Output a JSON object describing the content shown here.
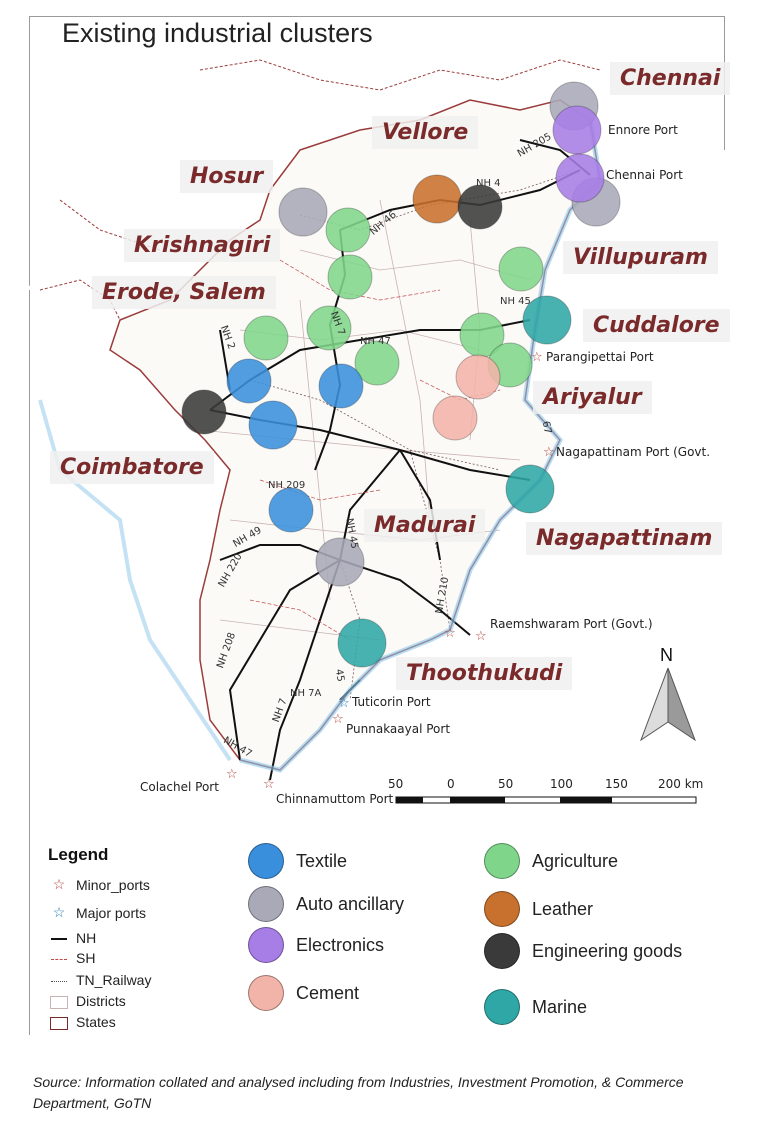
{
  "title": "Existing industrial clusters",
  "colors": {
    "textile": "#3a8fdc",
    "auto_ancillary": "#a9a9b8",
    "electronics": "#a77de6",
    "cement": "#f2b3a8",
    "agriculture": "#7fd68a",
    "leather": "#c8702d",
    "engineering_goods": "#3a3a3a",
    "marine": "#2fa7a6"
  },
  "cities": {
    "chennai": "Chennai",
    "vellore": "Vellore",
    "hosur": "Hosur",
    "krishnagiri": "Krishnagiri",
    "erode_salem": "Erode, Salem",
    "villupuram": "Villupuram",
    "cuddalore": "Cuddalore",
    "ariyalur": "Ariyalur",
    "coimbatore": "Coimbatore",
    "madurai": "Madurai",
    "nagapattinam": "Nagapattinam",
    "thoothukudi": "Thoothukudi"
  },
  "ports": {
    "ennore": "Ennore Port",
    "chennai": "Chennai Port",
    "parangipettai": "Parangipettai Port",
    "nagapattinam": "Nagapattinam Port (Govt.",
    "raemshwaram": "Raemshwaram Port (Govt.)",
    "tuticorin": "Tuticorin Port",
    "punnakaayal": "Punnakaayal Port",
    "colachel": "Colachel Port",
    "chinnamuttom": "Chinnamuttom Port"
  },
  "highways": {
    "nh205": "NH 205",
    "nh4": "NH 4",
    "nh46": "NH 46",
    "nh7a_top": "NH 7",
    "nh45": "NH 45",
    "nh47_top": "NH 47",
    "nh209": "NH 209",
    "nh49": "NH 49",
    "nh220": "NH 220",
    "nh210": "NH 210",
    "nh208": "NH 208",
    "nh7a": "NH 7A",
    "nh47": "NH 47",
    "nh7": "NH 7",
    "nh45b": "45",
    "nh_ma": "NH 45",
    "nh2": "NH 2",
    "nh67": "67"
  },
  "scale": {
    "labels": [
      "50",
      "0",
      "50",
      "100",
      "150",
      "200 km"
    ]
  },
  "north": "N",
  "legend": {
    "title": "Legend",
    "items": [
      "Minor_ports",
      "Major ports",
      "NH",
      "SH",
      "TN_Railway",
      "Districts",
      "States"
    ]
  },
  "categories": {
    "textile": "Textile",
    "auto_ancillary": "Auto ancillary",
    "electronics": "Electronics",
    "cement": "Cement",
    "agriculture": "Agriculture",
    "leather": "Leather",
    "engineering_goods": "Engineering goods",
    "marine": "Marine"
  },
  "source": "Source: Information collated and analysed including from Industries, Investment Promotion, & Commerce Department, GoTN"
}
